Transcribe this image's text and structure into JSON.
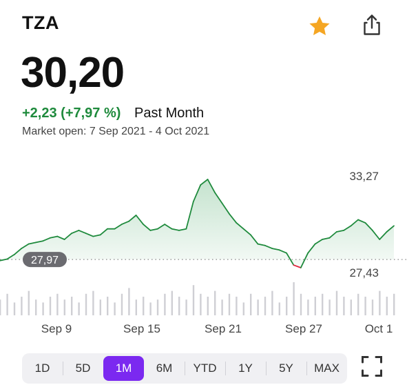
{
  "header": {
    "ticker": "TZA",
    "icons": {
      "favorite": "star-icon",
      "share": "share-icon"
    },
    "favorite_color": "#f5a623"
  },
  "quote": {
    "price": "30,20",
    "change": "+2,23 (+7,97 %)",
    "period": "Past Month",
    "market_info": "Market open: 7 Sep 2021 - 4 Oct 2021",
    "up_color": "#1e8a3c"
  },
  "chart_data": {
    "type": "line",
    "x_range": [
      "2021-09-07",
      "2021-10-04"
    ],
    "x_ticks": [
      "Sep 9",
      "Sep 15",
      "Sep 21",
      "Sep 27",
      "Oct 1"
    ],
    "high_label": "33,27",
    "low_label": "27,43",
    "reference_label": "27,97",
    "reference_value": 27.97,
    "high": 33.27,
    "low": 27.43,
    "up_color": "#1e8a3c",
    "down_color": "#e0243d",
    "series": [
      {
        "values": [
          27.9,
          28.0,
          28.3,
          28.7,
          29.0,
          29.1,
          29.2,
          29.4,
          29.5,
          29.3,
          29.7,
          29.9,
          29.7,
          29.5,
          29.6,
          30.0,
          30.0,
          30.3,
          30.5,
          30.9,
          30.3,
          29.9,
          30.0,
          30.3,
          30.0,
          29.9,
          30.0,
          31.8,
          32.9,
          33.27,
          32.4,
          31.7,
          31.0,
          30.4,
          30.0,
          29.6,
          29.0,
          28.9,
          28.7,
          28.6,
          28.4,
          27.6,
          27.43,
          28.4,
          29.0,
          29.3,
          29.4,
          29.8,
          29.9,
          30.2,
          30.6,
          30.4,
          29.9,
          29.3,
          29.8,
          30.2
        ]
      }
    ],
    "volume": [
      4,
      6,
      3,
      5,
      7,
      4,
      3,
      5,
      6,
      4,
      5,
      3,
      6,
      7,
      4,
      5,
      3,
      6,
      8,
      4,
      5,
      3,
      4,
      6,
      7,
      5,
      4,
      9,
      6,
      5,
      7,
      4,
      6,
      5,
      3,
      6,
      4,
      5,
      7,
      3,
      5,
      10,
      6,
      4,
      5,
      6,
      4,
      7,
      5,
      4,
      6,
      5,
      4,
      7,
      5,
      6
    ]
  },
  "range_selector": {
    "options": [
      "1D",
      "5D",
      "1M",
      "6M",
      "YTD",
      "1Y",
      "5Y",
      "MAX"
    ],
    "selected": "1M",
    "accent": "#7b29f0"
  },
  "controls": {
    "fullscreen_icon": "fullscreen-icon"
  }
}
